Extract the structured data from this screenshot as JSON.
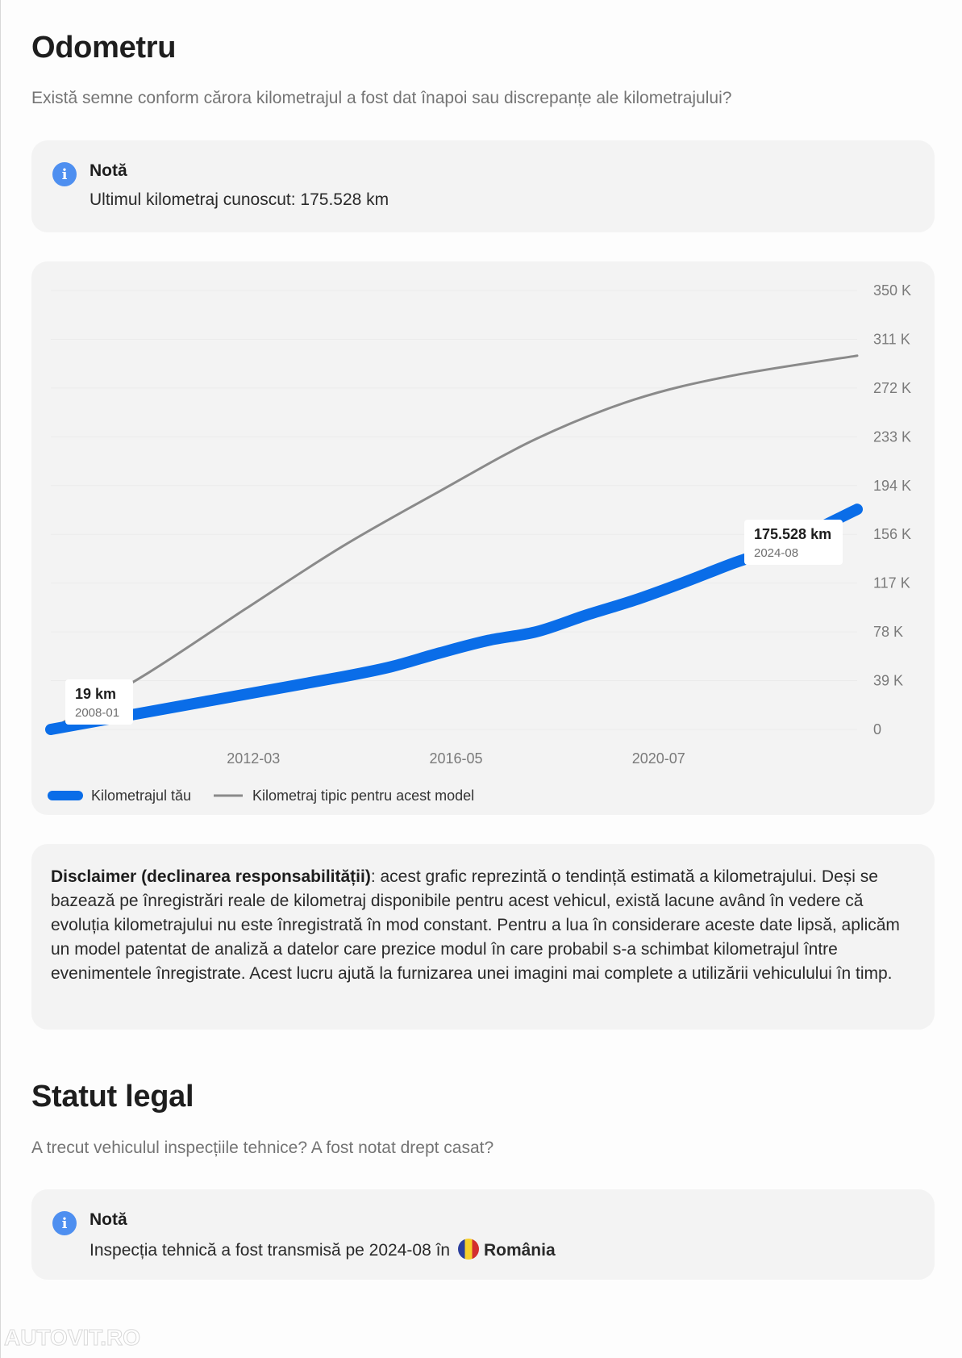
{
  "odometer": {
    "title": "Odometru",
    "subtitle": "Există semne conform cărora kilometrajul a fost dat înapoi sau discrepanțe ale kilometrajului?",
    "note": {
      "icon": "info-icon",
      "title": "Notă",
      "text": "Ultimul kilometraj cunoscut: 175.528 km"
    }
  },
  "chart_data": {
    "type": "line",
    "title": "",
    "xlabel": "",
    "ylabel": "",
    "x_ticks": [
      "2012-03",
      "2016-05",
      "2020-07"
    ],
    "y_ticks": [
      "0",
      "39 K",
      "78 K",
      "117 K",
      "156 K",
      "194 K",
      "233 K",
      "272 K",
      "311 K",
      "350 K"
    ],
    "ylim": [
      0,
      350000
    ],
    "xlim": [
      "2008-01",
      "2024-08"
    ],
    "y_axis_side": "right",
    "grid": true,
    "legend_position": "bottom-left",
    "series": [
      {
        "name": "Kilometrajul tău",
        "color": "#0a6de8",
        "x": [
          "2008-01",
          "2010-01",
          "2012-01",
          "2014-01",
          "2015-01",
          "2016-01",
          "2017-01",
          "2018-01",
          "2019-01",
          "2020-01",
          "2021-01",
          "2022-01",
          "2023-01",
          "2024-08"
        ],
        "y": [
          19,
          14000,
          28000,
          42000,
          50000,
          61000,
          71000,
          78000,
          91000,
          103000,
          117000,
          132000,
          146000,
          175528
        ]
      },
      {
        "name": "Kilometraj tipic pentru acest model",
        "color": "#8a8a8a",
        "x": [
          "2008-01",
          "2010-01",
          "2012-01",
          "2014-01",
          "2016-01",
          "2018-01",
          "2020-01",
          "2022-01",
          "2024-08"
        ],
        "y": [
          0,
          45000,
          96000,
          146000,
          190000,
          232000,
          263000,
          282000,
          298000
        ]
      }
    ],
    "annotations": [
      {
        "value": "19 km",
        "date": "2008-01"
      },
      {
        "value": "175.528 km",
        "date": "2024-08"
      }
    ]
  },
  "disclaimer": {
    "bold": "Disclaimer (declinarea responsabilității)",
    "text": ": acest grafic reprezintă o tendință estimată a kilometrajului. Deși se bazează pe înregistrări reale de kilometraj disponibile pentru acest vehicul, există lacune având în vedere că evoluția kilometrajului nu este înregistrată în mod constant. Pentru a lua în considerare aceste date lipsă, aplicăm un model patentat de analiză a datelor care prezice modul în care probabil s-a schimbat kilometrajul între evenimentele înregistrate. Acest lucru ajută la furnizarea unei imagini mai complete a utilizării vehiculului în timp."
  },
  "legal": {
    "title": "Statut legal",
    "subtitle": "A trecut vehiculul inspecțiile tehnice? A fost notat drept casat?",
    "note": {
      "icon": "info-icon",
      "title": "Notă",
      "text": "Inspecția tehnică a fost transmisă pe 2024-08 în",
      "country": "România",
      "flag_icon": "romania-flag-icon"
    }
  },
  "watermark": "AUTOVIT.RO"
}
